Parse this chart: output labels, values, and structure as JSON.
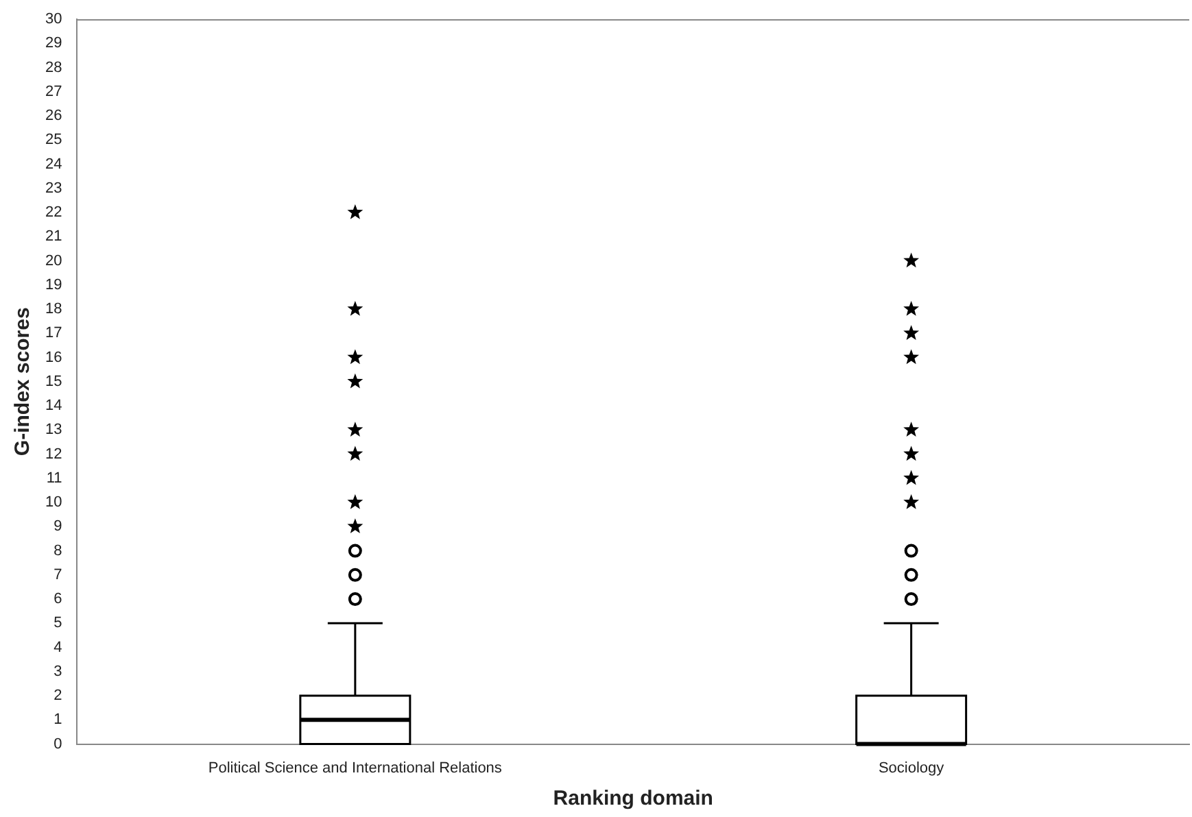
{
  "chart_data": {
    "type": "box",
    "xlabel": "Ranking domain",
    "ylabel": "G-index scores",
    "categories": [
      "Political Science and International Relations",
      "Sociology"
    ],
    "boxes": [
      {
        "low": 0,
        "q1": 0,
        "median": 1,
        "q3": 2,
        "high": 5,
        "outliers": [
          6,
          7,
          8,
          9,
          10,
          12,
          13,
          15,
          16,
          18,
          22
        ]
      },
      {
        "low": 0,
        "q1": 0,
        "median": 0,
        "q3": 2,
        "high": 5,
        "outliers": [
          6,
          7,
          8,
          10,
          11,
          12,
          13,
          16,
          17,
          18,
          20
        ]
      }
    ],
    "ylim": [
      0,
      30
    ],
    "yticks": [
      0,
      1,
      2,
      3,
      4,
      5,
      6,
      7,
      8,
      9,
      10,
      11,
      12,
      13,
      14,
      15,
      16,
      17,
      18,
      19,
      20,
      21,
      22,
      23,
      24,
      25,
      26,
      27,
      28,
      29,
      30
    ]
  }
}
